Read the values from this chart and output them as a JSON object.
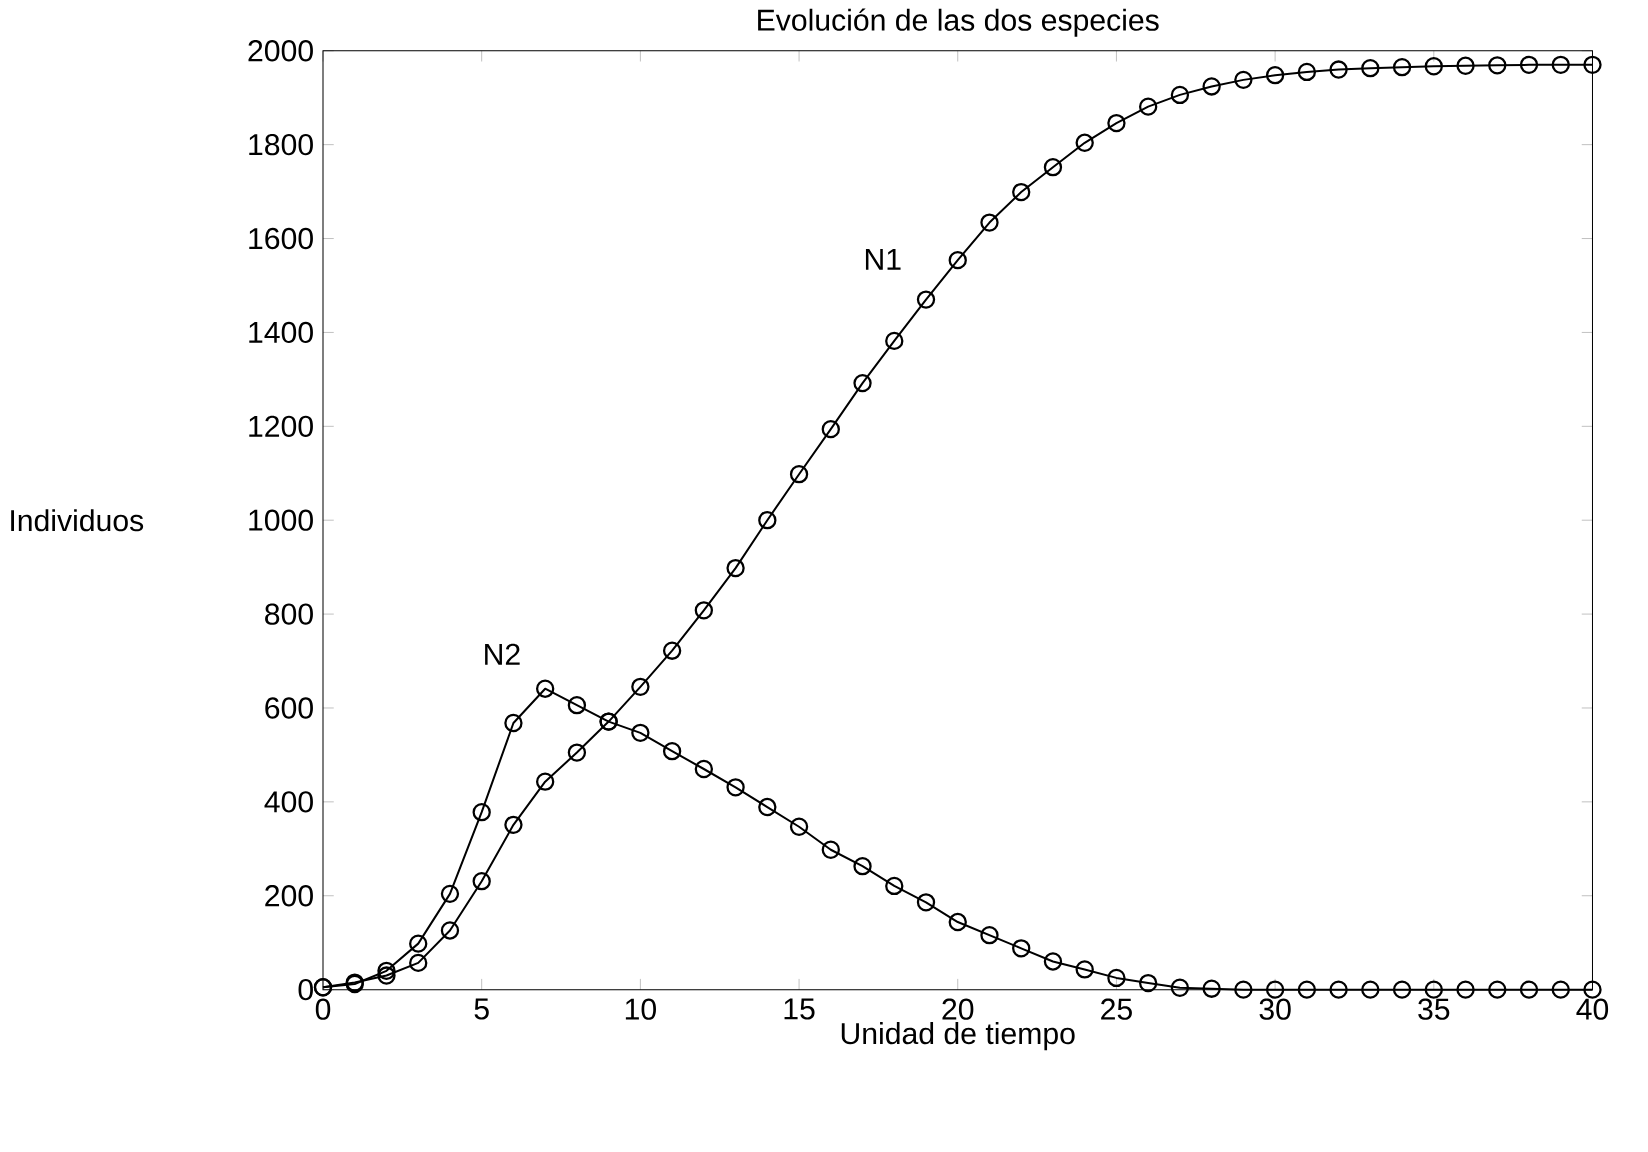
{
  "chart_data": {
    "type": "line",
    "title": "Evolución de las dos especies",
    "xlabel": "Unidad de tiempo",
    "ylabel": "Individuos",
    "x": [
      0,
      1,
      2,
      3,
      4,
      5,
      6,
      7,
      8,
      9,
      10,
      11,
      12,
      13,
      14,
      15,
      16,
      17,
      18,
      19,
      20,
      21,
      22,
      23,
      24,
      25,
      26,
      27,
      28,
      29,
      30,
      31,
      32,
      33,
      34,
      35,
      36,
      37,
      38,
      39,
      40
    ],
    "series": [
      {
        "name": "N1",
        "color": "#000000",
        "values": [
          5,
          15,
          30,
          57,
          126,
          231,
          351,
          443,
          505,
          571,
          645,
          722,
          808,
          898,
          1000,
          1098,
          1194,
          1292,
          1382,
          1470,
          1554,
          1634,
          1699,
          1752,
          1804,
          1846,
          1881,
          1906,
          1924,
          1938,
          1948,
          1955,
          1960,
          1963,
          1965,
          1967,
          1968,
          1969,
          1970,
          1970,
          1970
        ]
      },
      {
        "name": "N2",
        "color": "#000000",
        "values": [
          5,
          12,
          40,
          98,
          204,
          378,
          568,
          641,
          606,
          571,
          547,
          508,
          470,
          431,
          389,
          347,
          298,
          263,
          221,
          186,
          144,
          116,
          88,
          60,
          43,
          25,
          14,
          4,
          2,
          0,
          0,
          0,
          0,
          0,
          0,
          0,
          0,
          0,
          0,
          0,
          0
        ]
      }
    ],
    "xlim": [
      0,
      40
    ],
    "xticks": [
      0,
      5,
      10,
      15,
      20,
      25,
      30,
      35,
      40
    ],
    "ylim": [
      0,
      2000
    ],
    "yticks": [
      0,
      200,
      400,
      600,
      800,
      1000,
      1200,
      1400,
      1600,
      1800,
      2000
    ],
    "marker": "circle",
    "line_style": "solid",
    "grid": false,
    "legend": false
  }
}
